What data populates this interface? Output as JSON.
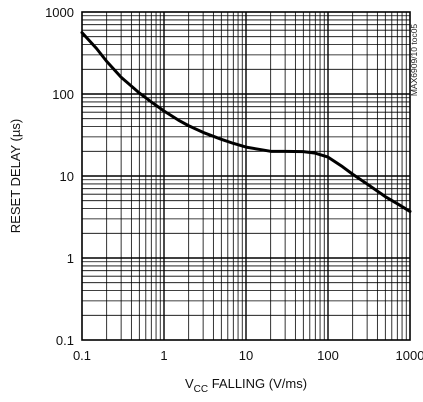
{
  "chart_data": {
    "type": "line",
    "xscale": "log",
    "yscale": "log",
    "xlim": [
      0.1,
      1000
    ],
    "ylim": [
      0.1,
      1000
    ],
    "grid": true,
    "ylabel": "RESET DELAY (µs)",
    "xlabel": {
      "v_main": "V",
      "v_sub": "CC",
      "rest": " FALLING (V/ms)"
    },
    "x_ticks": [
      "0.1",
      "1",
      "10",
      "100",
      "1000"
    ],
    "y_ticks": [
      "0.1",
      "1",
      "10",
      "100",
      "1000"
    ],
    "series": [
      {
        "x": [
          0.1,
          0.15,
          0.2,
          0.3,
          0.5,
          0.7,
          1,
          1.5,
          2,
          3,
          5,
          7,
          10,
          15,
          20,
          30,
          50,
          70,
          100,
          150,
          200,
          300,
          500,
          700,
          1000
        ],
        "y": [
          560,
          360,
          250,
          160,
          103,
          80,
          62,
          48,
          41,
          34,
          28,
          25,
          22.5,
          21,
          20,
          20,
          19.8,
          19,
          17,
          13,
          10.5,
          8,
          5.6,
          4.6,
          3.7
        ]
      }
    ],
    "side_code": "MAX6909/10 toc05"
  },
  "colors": {
    "line": "#000000",
    "grid": "#000000",
    "text": "#111111"
  }
}
